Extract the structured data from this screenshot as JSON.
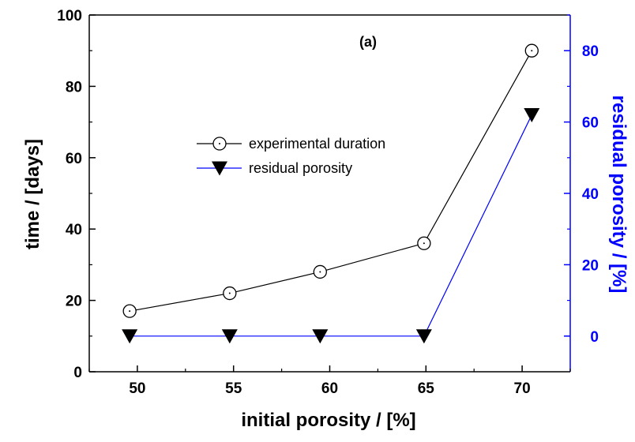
{
  "chart_data": {
    "type": "line",
    "annotation": "(a)",
    "xlabel": "initial porosity / [%]",
    "ylabel_left": "time / [days]",
    "ylabel_right": "residual porosity / [%]",
    "xlim": [
      47.5,
      72.5
    ],
    "ylim_left": [
      0,
      100
    ],
    "ylim_right": [
      -10,
      90
    ],
    "xticks": [
      50,
      55,
      60,
      65,
      70
    ],
    "yticks_left": [
      0,
      20,
      40,
      60,
      80,
      100
    ],
    "yticks_right": [
      0,
      20,
      40,
      60,
      80
    ],
    "grid": false,
    "legend_position": "middle-left",
    "series": [
      {
        "name": "experimental duration",
        "axis": "left",
        "marker": "open-circle-dot",
        "color": "#000000",
        "x": [
          49.6,
          54.8,
          59.5,
          64.9,
          70.5
        ],
        "y": [
          17,
          22,
          28,
          36,
          90
        ]
      },
      {
        "name": "residual porosity",
        "axis": "right",
        "marker": "filled-down-triangle",
        "color": "#0000ff",
        "marker_color": "#000000",
        "x": [
          49.6,
          54.8,
          59.5,
          64.9,
          70.5
        ],
        "y": [
          0,
          0,
          0,
          0,
          62
        ]
      }
    ],
    "colors": {
      "left_axis": "#000000",
      "right_axis": "#0000ff"
    }
  }
}
